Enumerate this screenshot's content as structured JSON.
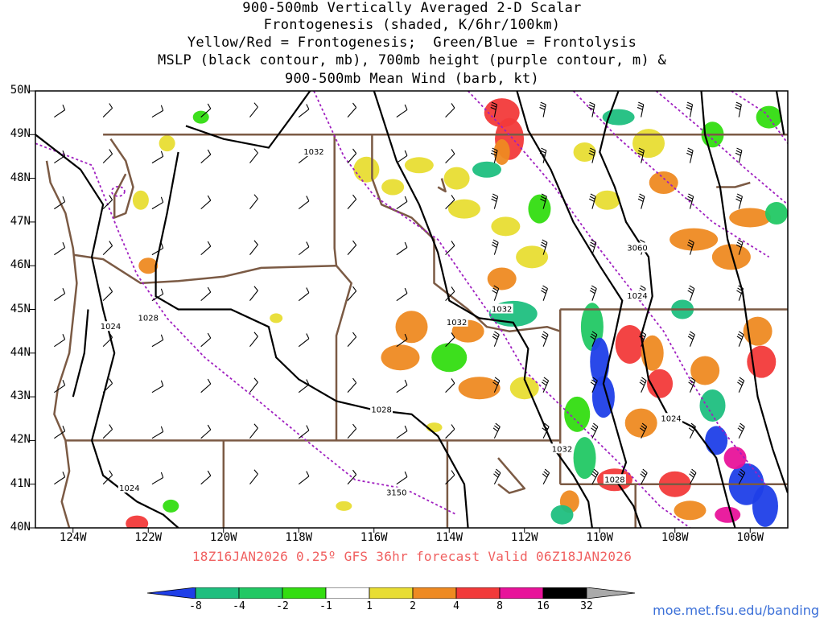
{
  "title": {
    "line1": "900-500mb Vertically Averaged 2-D Scalar",
    "line2": "Frontogenesis (shaded, K/6hr/100km)",
    "line3": "Yellow/Red = Frontogenesis;  Green/Blue = Frontolysis",
    "line4": "MSLP (black contour, mb), 700mb height (purple contour, m) &",
    "line5": "900-500mb Mean Wind (barb, kt)"
  },
  "valid_text": "18Z16JAN2026 0.25º GFS 36hr forecast Valid 06Z18JAN2026",
  "credit": "moe.met.fsu.edu/banding",
  "map": {
    "lat_labels": [
      "50N",
      "49N",
      "48N",
      "47N",
      "46N",
      "45N",
      "44N",
      "43N",
      "42N",
      "41N",
      "40N"
    ],
    "lat_values": [
      50,
      49,
      48,
      47,
      46,
      45,
      44,
      43,
      42,
      41,
      40
    ],
    "lon_labels": [
      "124W",
      "122W",
      "120W",
      "118W",
      "116W",
      "114W",
      "112W",
      "110W",
      "108W",
      "106W"
    ],
    "lon_values": [
      -124,
      -122,
      -120,
      -118,
      -116,
      -114,
      -112,
      -110,
      -108,
      -106
    ],
    "extent": {
      "lon_min": -125,
      "lon_max": -105,
      "lat_min": 40,
      "lat_max": 50
    },
    "mslp_contour_labels": [
      {
        "text": "1032",
        "lon": -117.6,
        "lat": 48.6
      },
      {
        "text": "1024",
        "lon": -123.0,
        "lat": 44.6
      },
      {
        "text": "1028",
        "lon": -122.0,
        "lat": 44.8
      },
      {
        "text": "1032",
        "lon": -112.6,
        "lat": 45.0
      },
      {
        "text": "1032",
        "lon": -113.8,
        "lat": 44.7
      },
      {
        "text": "1024",
        "lon": -109.0,
        "lat": 45.3
      },
      {
        "text": "1028",
        "lon": -115.8,
        "lat": 42.7
      },
      {
        "text": "1024",
        "lon": -108.1,
        "lat": 42.5
      },
      {
        "text": "1032",
        "lon": -111.0,
        "lat": 41.8
      },
      {
        "text": "1028",
        "lon": -109.6,
        "lat": 41.1
      },
      {
        "text": "1024",
        "lon": -122.5,
        "lat": 40.9
      }
    ],
    "height_contour_labels": [
      {
        "text": "3060",
        "lon": -109.0,
        "lat": 46.4
      },
      {
        "text": "3150",
        "lon": -115.4,
        "lat": 40.8
      }
    ]
  },
  "colorbar": {
    "labels": [
      "-8",
      "-4",
      "-2",
      "-1",
      "1",
      "2",
      "4",
      "8",
      "16",
      "32"
    ],
    "colors": [
      "#1f3fe8",
      "#1fbf7f",
      "#22c864",
      "#33dd11",
      "#ffffff",
      "#e8dd33",
      "#ee8a22",
      "#f23a3a",
      "#e8139a",
      "#000000",
      "#aaaaaa"
    ]
  },
  "colors": {
    "coast": "#7b5a44",
    "mslp": "#000000",
    "height": "#a020c0",
    "barb": "#000000",
    "valid_text": "#f06060",
    "credit": "#3a6fd8"
  }
}
